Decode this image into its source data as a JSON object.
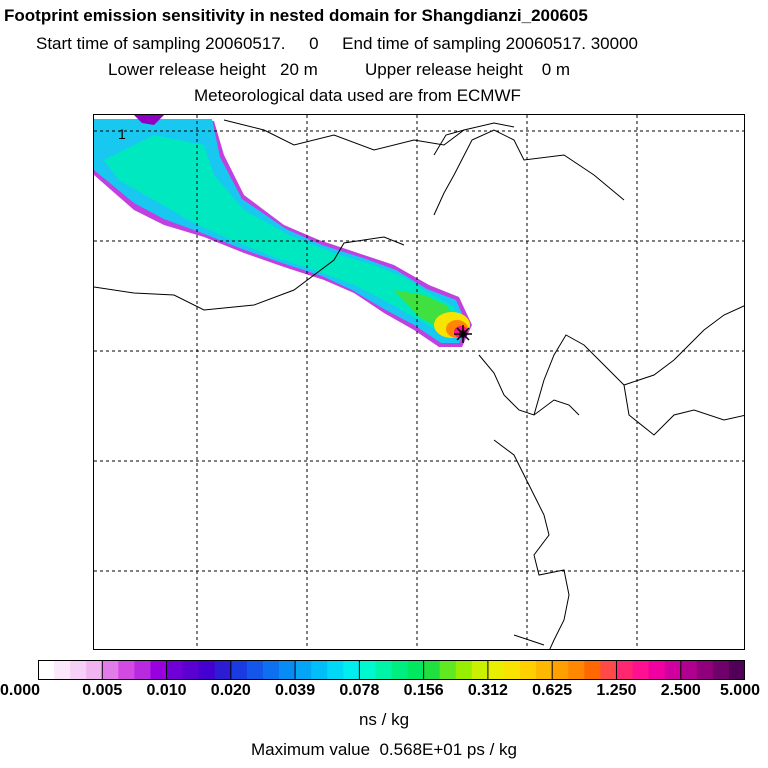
{
  "header": {
    "title": "Footprint emission sensitivity in nested domain for Shangdianzi_200605",
    "sampling": "Start time of sampling 20060517.     0     End time of sampling 20060517. 30000",
    "release": "Lower release height   20 m          Upper release height    0 m",
    "met": "Meteorological data used are from ECMWF"
  },
  "map": {
    "corner_label": "1",
    "receptor_marker": "star"
  },
  "colorbar": {
    "unit_label": "ns / kg",
    "tick_labels": [
      "0.000",
      "0.005",
      "0.010",
      "0.020",
      "0.039",
      "0.078",
      "0.156",
      "0.312",
      "0.625",
      "1.250",
      "2.500",
      "5.000"
    ],
    "colors": [
      "#ffffff",
      "#fbe8fb",
      "#f6d0f6",
      "#f0b4f0",
      "#e27ce8",
      "#d24ae2",
      "#b82ae0",
      "#9800e0",
      "#7000d8",
      "#5a00d0",
      "#4400d0",
      "#2c1cd4",
      "#1a3ae2",
      "#1256ea",
      "#0c70f0",
      "#088cf4",
      "#04a4f6",
      "#00bef8",
      "#00d8f8",
      "#00eeee",
      "#00f8d0",
      "#00f4a8",
      "#00ee80",
      "#00e860",
      "#20e040",
      "#60e820",
      "#98ee00",
      "#c8f000",
      "#e8f000",
      "#f8e400",
      "#ffd000",
      "#ffb800",
      "#ffa000",
      "#ff8800",
      "#ff6800",
      "#ff4848",
      "#ff2870",
      "#ff1090",
      "#f000a0",
      "#d000a0",
      "#b00090",
      "#90007c",
      "#70006a",
      "#500058"
    ]
  },
  "footer": {
    "max_value": "Maximum value  0.568E+01 ps / kg"
  }
}
